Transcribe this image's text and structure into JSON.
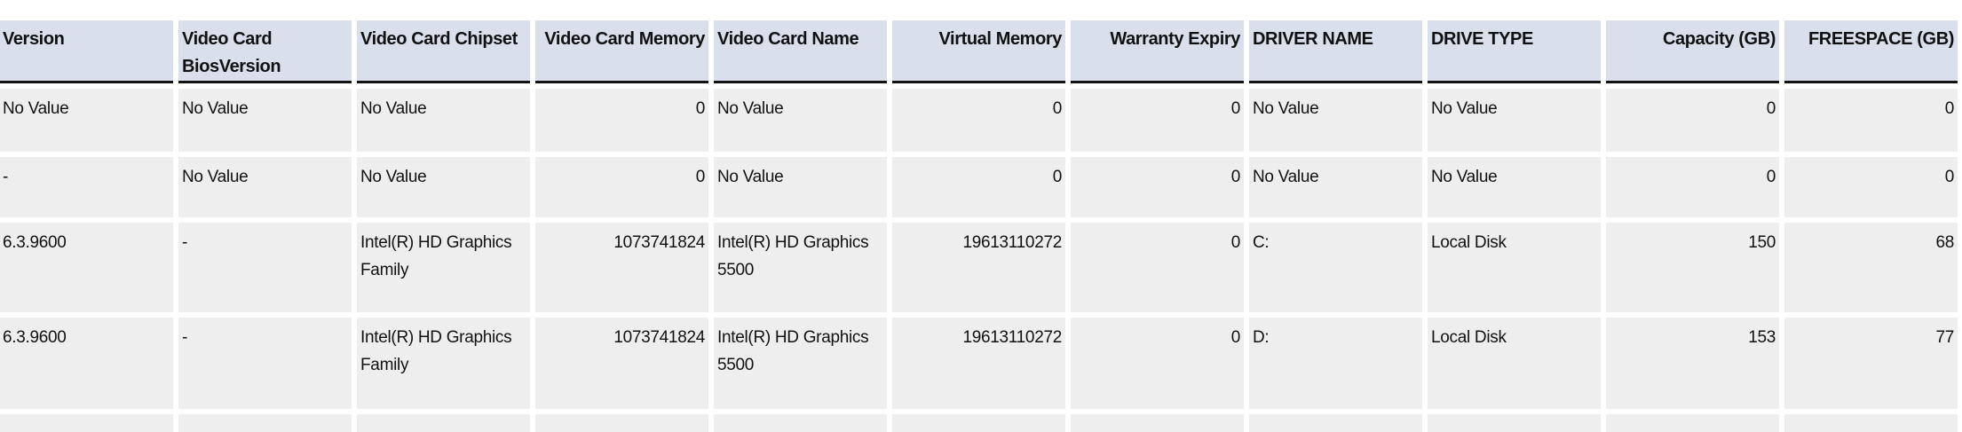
{
  "table": {
    "columns": [
      {
        "label": "Version",
        "align": "left"
      },
      {
        "label": "Video Card BiosVersion",
        "align": "left"
      },
      {
        "label": "Video Card Chipset",
        "align": "left"
      },
      {
        "label": "Video Card Memory",
        "align": "right"
      },
      {
        "label": "Video Card Name",
        "align": "left"
      },
      {
        "label": "Virtual Memory",
        "align": "right"
      },
      {
        "label": "Warranty Expiry",
        "align": "right"
      },
      {
        "label": "DRIVER NAME",
        "align": "left"
      },
      {
        "label": "DRIVE TYPE",
        "align": "left"
      },
      {
        "label": "Capacity (GB)",
        "align": "right"
      },
      {
        "label": "FREESPACE (GB)",
        "align": "right"
      }
    ],
    "rows": [
      [
        "No Value",
        "No Value",
        "No Value",
        "0",
        "No Value",
        "0",
        "0",
        "No Value",
        "No Value",
        "0",
        "0"
      ],
      [
        "-",
        "No Value",
        "No Value",
        "0",
        "No Value",
        "0",
        "0",
        "No Value",
        "No Value",
        "0",
        "0"
      ],
      [
        "6.3.9600",
        "-",
        "Intel(R) HD Graphics Family",
        "1073741824",
        "Intel(R) HD Graphics 5500",
        "19613110272",
        "0",
        "C:",
        "Local Disk",
        "150",
        "68"
      ],
      [
        "6.3.9600",
        "-",
        "Intel(R) HD Graphics Family",
        "1073741824",
        "Intel(R) HD Graphics 5500",
        "19613110272",
        "0",
        "D:",
        "Local Disk",
        "153",
        "77"
      ],
      [
        "",
        "",
        "",
        "",
        "",
        "",
        "",
        "",
        "",
        "",
        ""
      ]
    ]
  },
  "colors": {
    "header_bg": "#d9dfeb",
    "cell_bg": "#eeeeee",
    "header_border": "#111111"
  }
}
